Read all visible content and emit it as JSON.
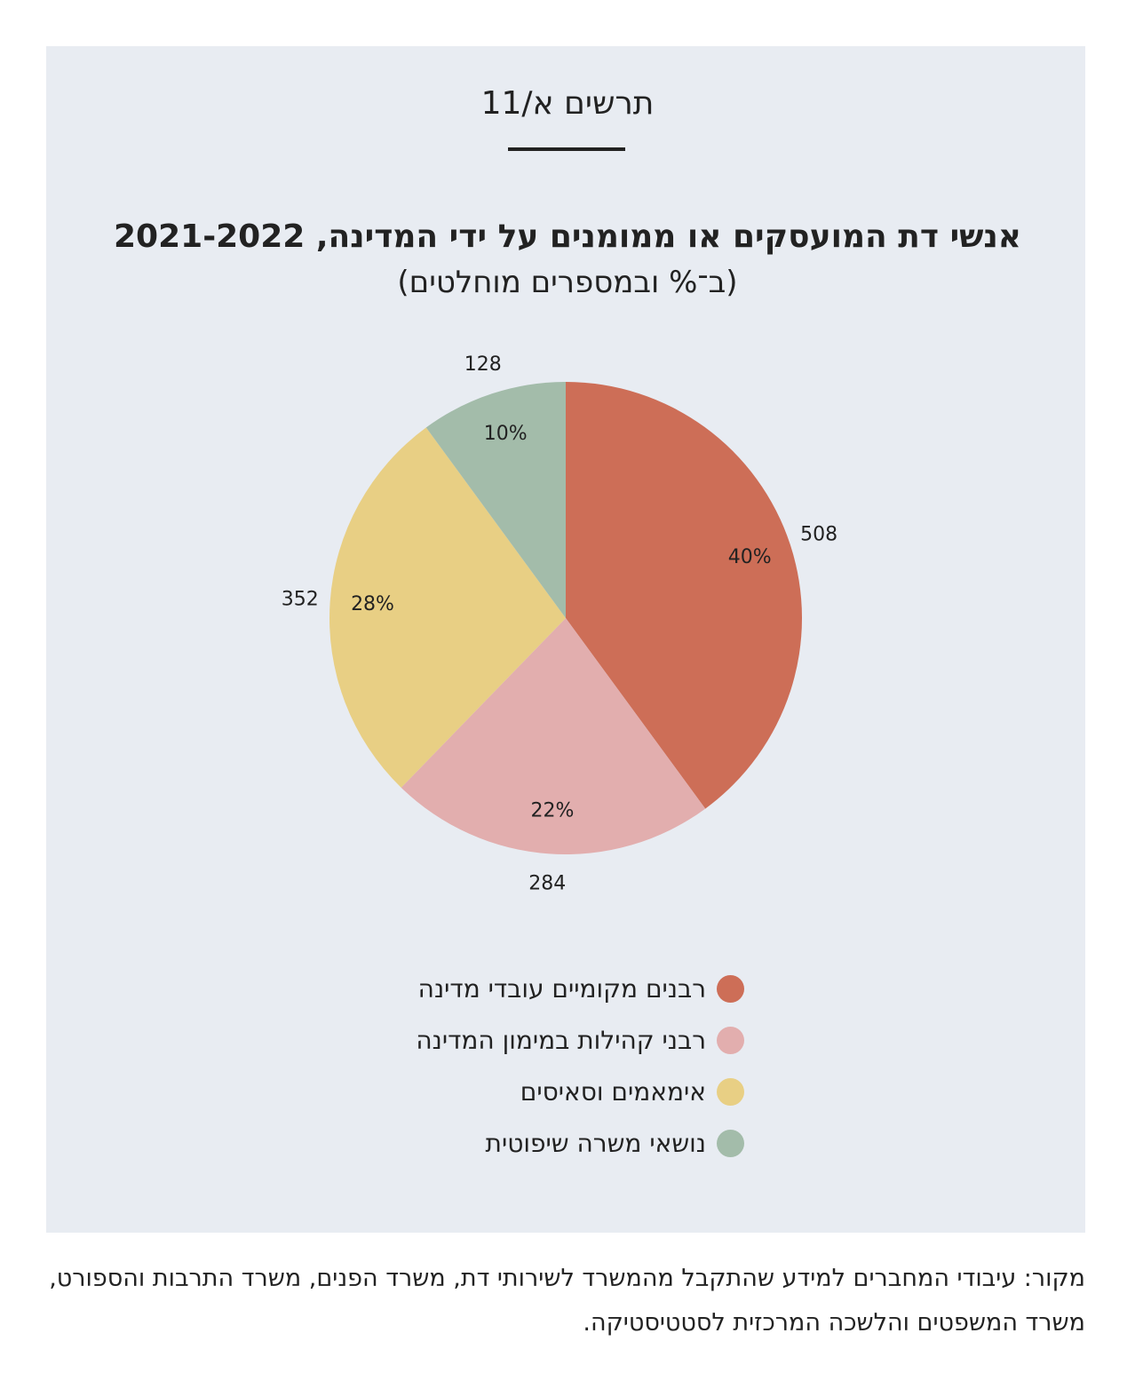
{
  "figure_number": "תרשים א/11",
  "chart_data": {
    "type": "pie",
    "title": "אנשי דת המועסקים או ממומנים על ידי המדינה, 2021-2022",
    "subtitle": "(ב־% ובמספרים מוחלטים)",
    "categories": [
      "רבנים מקומיים עובדי מדינה",
      "רבני קהילות במימון המדינה",
      "אימאמים וסאיסים",
      "נושאי משרה שיפוטית"
    ],
    "values": [
      508,
      284,
      352,
      128
    ],
    "percent_labels": [
      "40%",
      "22%",
      "28%",
      "10%"
    ],
    "count_labels": [
      "508",
      "284",
      "352",
      "128"
    ],
    "colors": [
      "#cd6e57",
      "#e2aeae",
      "#e8cf84",
      "#a3bcaa"
    ],
    "legend_position": "bottom",
    "start": "top, clockwise"
  },
  "legend": {
    "items": [
      {
        "label": "רבנים מקומיים עובדי מדינה",
        "color": "#cd6e57"
      },
      {
        "label": "רבני קהילות במימון המדינה",
        "color": "#e2aeae"
      },
      {
        "label": "אימאמים וסאיסים",
        "color": "#e8cf84"
      },
      {
        "label": "נושאי משרה שיפוטית",
        "color": "#a3bcaa"
      }
    ]
  },
  "panel_background": "#e8ecf2",
  "source_note": "מקור: עיבודי המחברים למידע שהתקבל מהמשרד לשירותי דת, משרד הפנים, משרד התרבות והספורט, משרד המשפטים והלשכה המרכזית לסטטיסטיקה."
}
